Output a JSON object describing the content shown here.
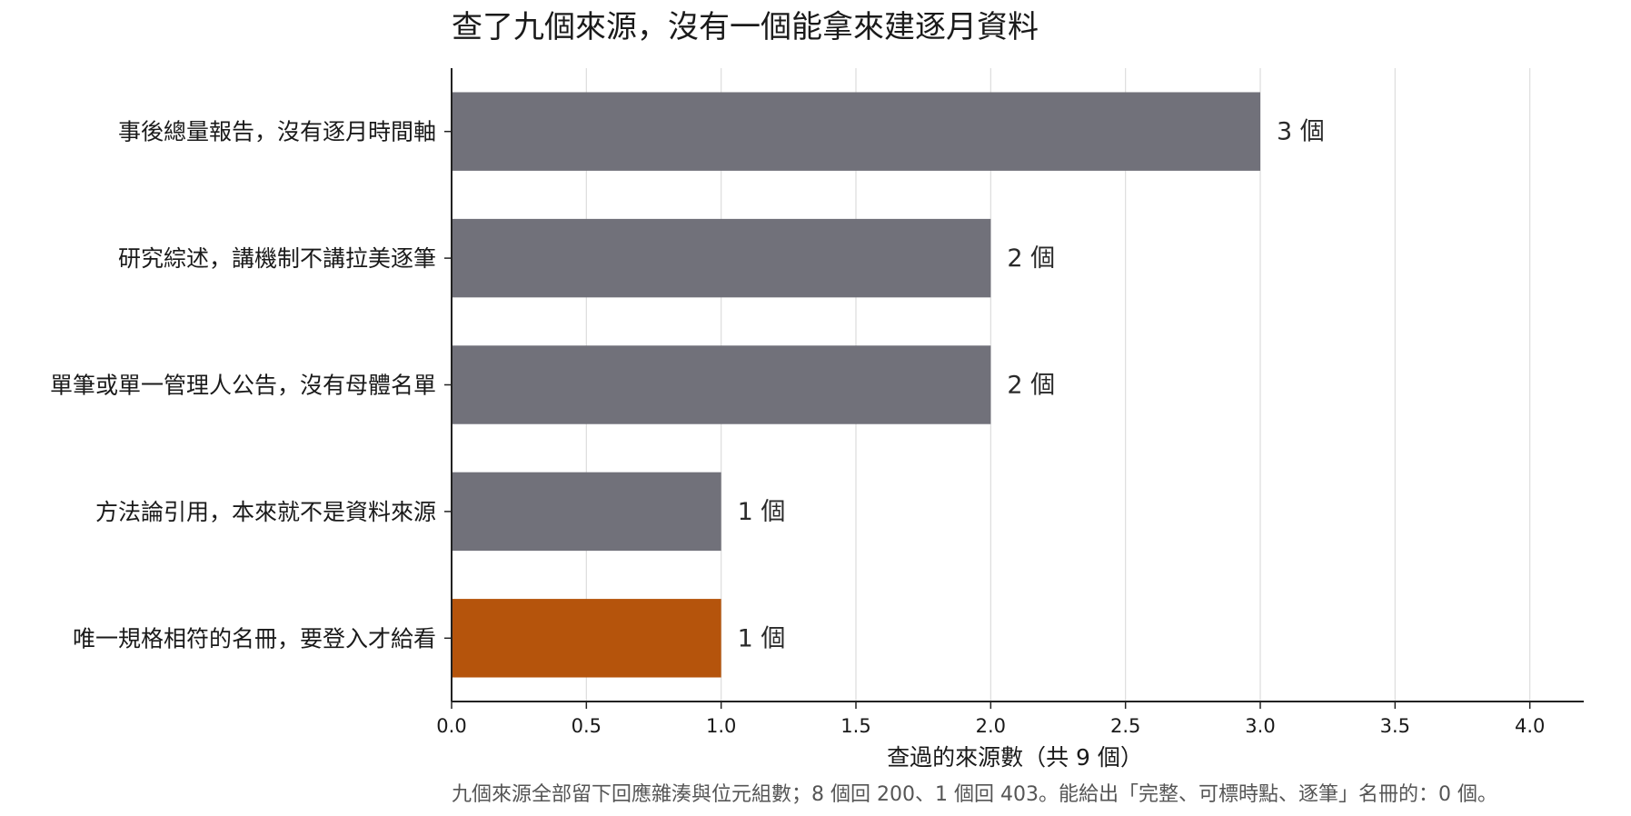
{
  "chart_data": {
    "type": "bar",
    "orientation": "horizontal",
    "title": "查了九個來源，沒有一個能拿來建逐月資料",
    "categories": [
      "事後總量報告，沒有逐月時間軸",
      "研究綜述，講機制不講拉美逐筆",
      "單筆或單一管理人公告，沒有母體名單",
      "方法論引用，本來就不是資料來源",
      "唯一規格相符的名冊，要登入才給看"
    ],
    "values": [
      3,
      2,
      2,
      1,
      1
    ],
    "value_labels": [
      "3 個",
      "2 個",
      "2 個",
      "1 個",
      "1 個"
    ],
    "bar_colors": [
      "#71717a",
      "#71717a",
      "#71717a",
      "#71717a",
      "#b5540c"
    ],
    "xlabel": "查過的來源數（共 9 個）",
    "xlim": [
      0,
      4.2
    ],
    "x_ticks": [
      0.0,
      0.5,
      1.0,
      1.5,
      2.0,
      2.5,
      3.0,
      3.5,
      4.0
    ],
    "x_tick_labels": [
      "0.0",
      "0.5",
      "1.0",
      "1.5",
      "2.0",
      "2.5",
      "3.0",
      "3.5",
      "4.0"
    ],
    "grid": "vertical",
    "legend": "none",
    "footnote": "九個來源全部留下回應雜湊與位元組數；8 個回 200、1 個回 403。能給出「完整、可標時點、逐筆」名冊的：0 個。"
  }
}
